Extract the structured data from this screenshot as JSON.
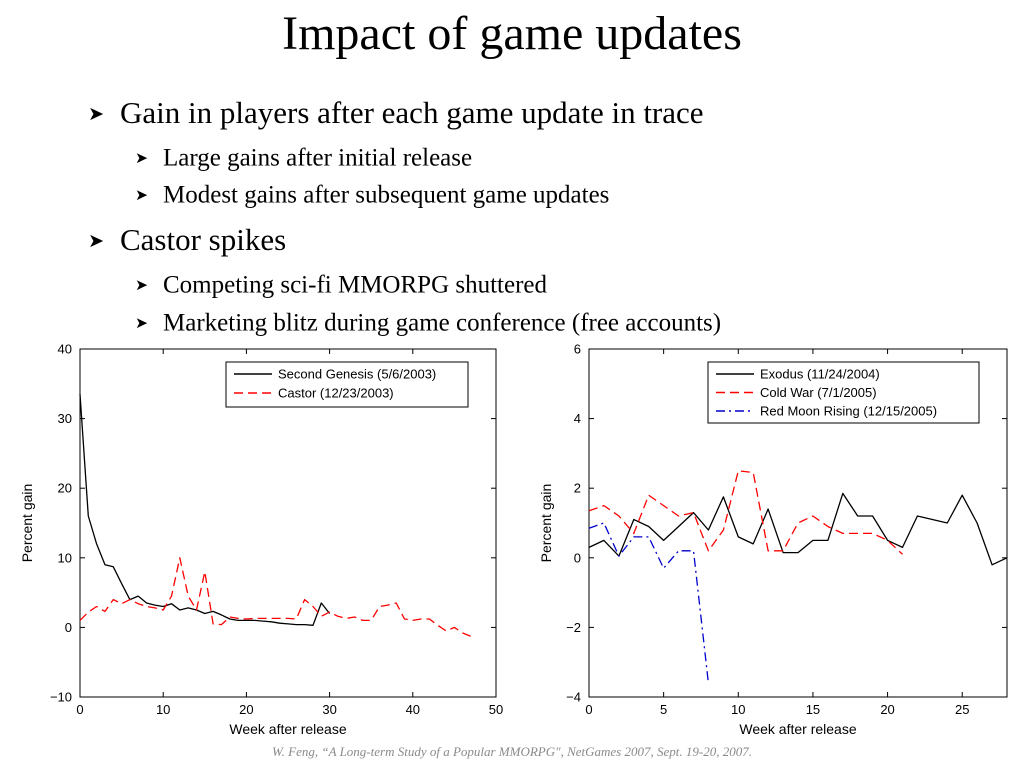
{
  "slide": {
    "title": "Impact of game updates",
    "bullets": [
      {
        "text": "Gain in players after each game update in trace",
        "sub": [
          "Large gains after initial release",
          "Modest gains after subsequent game updates"
        ]
      },
      {
        "text": "Castor spikes",
        "sub": [
          "Competing sci-fi MMORPG shuttered",
          "Marketing blitz during game conference (free accounts)"
        ]
      }
    ],
    "citation": "W. Feng, “A Long-term Study of a Popular MMORPG\", NetGames 2007, Sept. 19-20, 2007."
  },
  "chart_data": [
    {
      "type": "line",
      "xlabel": "Week after release",
      "ylabel": "Percent gain",
      "xlim": [
        0,
        50
      ],
      "ylim": [
        -10,
        40
      ],
      "xticks": [
        0,
        10,
        20,
        30,
        40,
        50
      ],
      "yticks": [
        -10,
        0,
        10,
        20,
        30,
        40
      ],
      "grid": false,
      "legend_position": "top-right",
      "series": [
        {
          "name": "Second Genesis (5/6/2003)",
          "color": "#000000",
          "dash": "solid",
          "x": [
            0,
            1,
            2,
            3,
            4,
            5,
            6,
            7,
            8,
            9,
            10,
            11,
            12,
            13,
            14,
            15,
            16,
            17,
            18,
            19,
            20,
            21,
            22,
            23,
            24,
            25,
            26,
            27,
            28,
            29,
            30
          ],
          "y": [
            33.5,
            16,
            12,
            9,
            8.7,
            6.3,
            4,
            4.5,
            3.5,
            3.2,
            3,
            3.4,
            2.5,
            2.8,
            2.5,
            2,
            2.3,
            1.8,
            1.2,
            1,
            1,
            1,
            0.9,
            0.8,
            0.6,
            0.5,
            0.4,
            0.4,
            0.3,
            3.5,
            2
          ]
        },
        {
          "name": "Castor (12/23/2003)",
          "color": "#ff0000",
          "dash": "dashed",
          "x": [
            0,
            1,
            2,
            3,
            4,
            5,
            6,
            7,
            8,
            9,
            10,
            11,
            12,
            13,
            14,
            15,
            16,
            17,
            18,
            19,
            20,
            21,
            22,
            23,
            24,
            25,
            26,
            27,
            28,
            29,
            30,
            31,
            32,
            33,
            34,
            35,
            36,
            37,
            38,
            39,
            40,
            41,
            42,
            43,
            44,
            45,
            46,
            47
          ],
          "y": [
            1,
            2.2,
            3,
            2.3,
            4,
            3.4,
            4,
            3.4,
            3,
            2.8,
            2.5,
            4.5,
            10,
            4.5,
            2.5,
            8,
            0.5,
            0.4,
            1.5,
            1.3,
            1.2,
            1.3,
            1.3,
            1.3,
            1.3,
            1.3,
            1.2,
            4,
            3,
            1.6,
            2.2,
            1.6,
            1.3,
            1.5,
            1,
            1,
            3,
            3.2,
            3.5,
            1.2,
            1,
            1.2,
            1.2,
            0.3,
            -0.5,
            0,
            -0.8,
            -1.3
          ]
        }
      ]
    },
    {
      "type": "line",
      "xlabel": "Week after release",
      "ylabel": "Percent gain",
      "xlim": [
        0,
        28
      ],
      "ylim": [
        -4,
        6
      ],
      "xticks": [
        0,
        5,
        10,
        15,
        20,
        25
      ],
      "yticks": [
        -4,
        -2,
        0,
        2,
        4,
        6
      ],
      "grid": false,
      "legend_position": "top-right",
      "series": [
        {
          "name": "Exodus (11/24/2004)",
          "color": "#000000",
          "dash": "solid",
          "x": [
            0,
            1,
            2,
            3,
            4,
            5,
            6,
            7,
            8,
            9,
            10,
            11,
            12,
            13,
            14,
            15,
            16,
            17,
            18,
            19,
            20,
            21,
            22,
            23,
            24,
            25,
            26,
            27,
            28
          ],
          "y": [
            0.3,
            0.5,
            0.05,
            1.1,
            0.9,
            0.5,
            0.9,
            1.3,
            0.8,
            1.75,
            0.6,
            0.4,
            1.4,
            0.15,
            0.15,
            0.5,
            0.5,
            1.85,
            1.2,
            1.2,
            0.5,
            0.3,
            1.2,
            1.1,
            1,
            1.8,
            1,
            -0.2,
            0
          ]
        },
        {
          "name": "Cold War (7/1/2005)",
          "color": "#ff0000",
          "dash": "dashed",
          "x": [
            0,
            1,
            2,
            3,
            4,
            5,
            6,
            7,
            8,
            9,
            10,
            11,
            12,
            13,
            14,
            15,
            16,
            17,
            18,
            19,
            20,
            21
          ],
          "y": [
            1.35,
            1.5,
            1.2,
            0.7,
            1.8,
            1.5,
            1.2,
            1.3,
            0.2,
            0.8,
            2.5,
            2.45,
            0.2,
            0.2,
            1,
            1.2,
            0.9,
            0.7,
            0.7,
            0.7,
            0.5,
            0.1
          ]
        },
        {
          "name": "Red Moon Rising (12/15/2005)",
          "color": "#0000cc",
          "dash": "dashdot",
          "x": [
            0,
            1,
            2,
            3,
            4,
            5,
            6,
            7,
            8
          ],
          "y": [
            0.85,
            1,
            0.05,
            0.6,
            0.6,
            -0.3,
            0.2,
            0.2,
            -3.6
          ]
        }
      ]
    }
  ]
}
